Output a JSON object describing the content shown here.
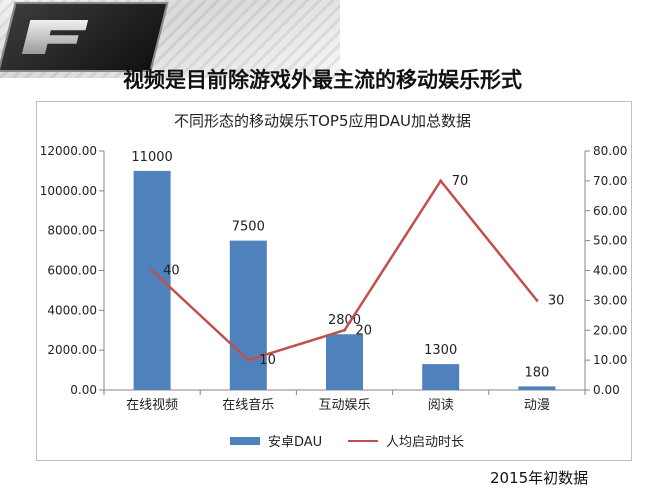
{
  "headline": "视频是目前除游戏外最主流的移动娱乐形式",
  "footnote": "2015年初数据",
  "colors": {
    "bar": "#4f81bd",
    "line": "#c0504d"
  },
  "chart_data": {
    "type": "bar",
    "title": "不同形态的移动娱乐TOP5应用DAU加总数据",
    "categories": [
      "在线视频",
      "在线音乐",
      "互动娱乐",
      "阅读",
      "动漫"
    ],
    "series": [
      {
        "name": "安卓DAU",
        "type": "bar",
        "axis": "left",
        "values": [
          11000,
          7500,
          2800,
          1300,
          180
        ]
      },
      {
        "name": "人均启动时长",
        "type": "line",
        "axis": "right",
        "values": [
          40,
          10,
          20,
          70,
          30
        ]
      }
    ],
    "y_left": {
      "min": 0,
      "max": 12000,
      "ticks": [
        "0.00",
        "2000.00",
        "4000.00",
        "6000.00",
        "8000.00",
        "10000.00",
        "12000.00"
      ]
    },
    "y_right": {
      "min": 0,
      "max": 80,
      "ticks": [
        "0.00",
        "10.00",
        "20.00",
        "30.00",
        "40.00",
        "50.00",
        "60.00",
        "70.00",
        "80.00"
      ]
    },
    "bar_labels": [
      "11000",
      "7500",
      "2800",
      "1300",
      "180"
    ],
    "line_labels": [
      "40",
      "10",
      "20",
      "70",
      "30"
    ],
    "grid": false,
    "legend": "bottom"
  }
}
